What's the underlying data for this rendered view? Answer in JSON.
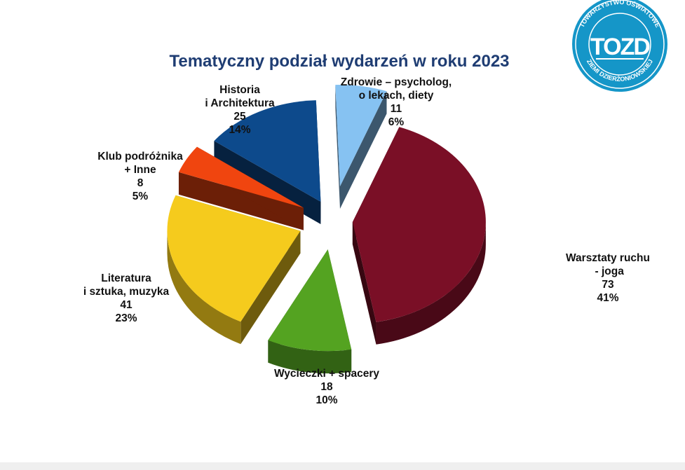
{
  "chart_data": {
    "type": "pie",
    "title": "Tematyczny podział wydarzeń w roku 2023",
    "slices": [
      {
        "label": [
          "Zdrowie – psycholog,",
          "o lekach, diety"
        ],
        "value": 11,
        "percent": "6%",
        "color": "#86c2f2"
      },
      {
        "label": [
          "Warsztaty ruchu",
          " - joga"
        ],
        "value": 73,
        "percent": "41%",
        "color": "#7a0f26"
      },
      {
        "label": [
          "Wycieczki + spacery"
        ],
        "value": 18,
        "percent": "10%",
        "color": "#54a321"
      },
      {
        "label": [
          "Literatura",
          "i sztuka, muzyka"
        ],
        "value": 41,
        "percent": "23%",
        "color": "#f5cb1d"
      },
      {
        "label": [
          "Klub podróżnika",
          "+ Inne"
        ],
        "value": 8,
        "percent": "5%",
        "color": "#f0450f"
      },
      {
        "label": [
          "Historia",
          "i Architektura"
        ],
        "value": 25,
        "percent": "14%",
        "color": "#0d4a8c"
      }
    ]
  },
  "title_color": "#1f3d73",
  "logo": {
    "top_text": "TOWARZYSTWO OŚWIATOWE",
    "bottom_text": "ZIEMI DZIERŻONIOWSKIEJ",
    "mark": "TOZD",
    "color": "#1596c8"
  }
}
